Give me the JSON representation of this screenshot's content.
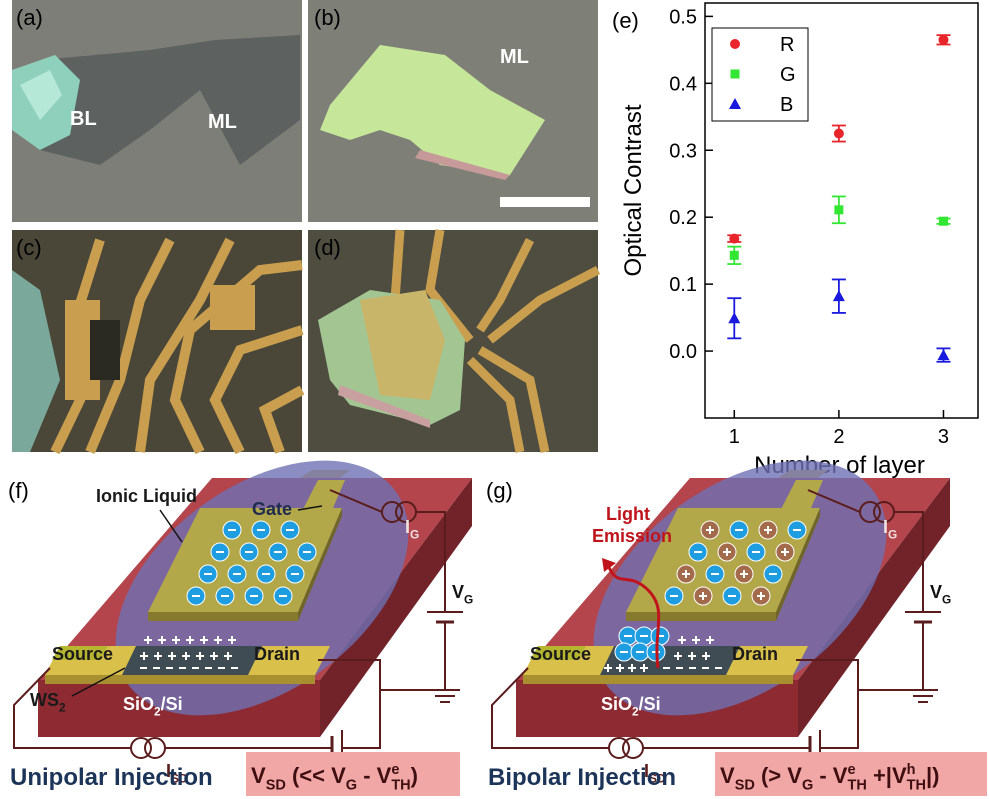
{
  "panels": {
    "a": {
      "label": "(a)",
      "annotations": [
        "BL",
        "ML"
      ]
    },
    "b": {
      "label": "(b)",
      "annotations": [
        "ML"
      ]
    },
    "c": {
      "label": "(c)"
    },
    "d": {
      "label": "(d)"
    },
    "e": {
      "label": "(e)"
    },
    "f": {
      "label": "(f)",
      "ionic_liquid": "Ionic Liquid",
      "gate": "Gate",
      "source": "Source",
      "drain": "Drain",
      "ws2": [
        {
          "t": "WS"
        },
        {
          "t": "2",
          "pos": "sub"
        }
      ],
      "substrate": [
        {
          "t": "SiO"
        },
        {
          "t": "2",
          "pos": "sub"
        },
        {
          "t": "/Si"
        }
      ],
      "ig": [
        {
          "t": "I"
        },
        {
          "t": "G",
          "pos": "sub"
        }
      ],
      "vg": [
        {
          "t": "V"
        },
        {
          "t": "G",
          "pos": "sub"
        }
      ],
      "isd": [
        {
          "t": "I"
        },
        {
          "t": "SD",
          "pos": "sub"
        }
      ],
      "caption": "Unipolar Injection",
      "condition": [
        {
          "t": "V"
        },
        {
          "t": "SD",
          "pos": "sub"
        },
        {
          "t": " (<< V"
        },
        {
          "t": "G",
          "pos": "sub"
        },
        {
          "t": " - V"
        },
        {
          "t": "e",
          "pos": "sup"
        },
        {
          "t": "TH",
          "pos": "sub"
        },
        {
          "t": ")"
        }
      ]
    },
    "g": {
      "label": "(g)",
      "light_emission": [
        "Light",
        "Emission"
      ],
      "source": "Source",
      "drain": "Drain",
      "substrate": [
        {
          "t": "SiO"
        },
        {
          "t": "2",
          "pos": "sub"
        },
        {
          "t": "/Si"
        }
      ],
      "ig": [
        {
          "t": "I"
        },
        {
          "t": "G",
          "pos": "sub"
        }
      ],
      "vg": [
        {
          "t": "V"
        },
        {
          "t": "G",
          "pos": "sub"
        }
      ],
      "isd": [
        {
          "t": "I"
        },
        {
          "t": "SD",
          "pos": "sub"
        }
      ],
      "caption": "Bipolar Injection",
      "condition": [
        {
          "t": "V"
        },
        {
          "t": "SD",
          "pos": "sub"
        },
        {
          "t": " (> V"
        },
        {
          "t": "G",
          "pos": "sub"
        },
        {
          "t": " - V"
        },
        {
          "t": "e",
          "pos": "sup"
        },
        {
          "t": "TH",
          "pos": "sub"
        },
        {
          "t": " +|V"
        },
        {
          "t": "h",
          "pos": "sup"
        },
        {
          "t": "TH",
          "pos": "sub"
        },
        {
          "t": "|)"
        }
      ]
    }
  },
  "chart_data": {
    "type": "scatter",
    "xlabel": "Number of layer",
    "ylabel": "Optical Contrast",
    "x": [
      1,
      2,
      3
    ],
    "series": [
      {
        "name": "R",
        "color": "#e8252a",
        "marker": "circle",
        "values": [
          0.168,
          0.325,
          0.465
        ],
        "errors": [
          0.005,
          0.012,
          0.007
        ]
      },
      {
        "name": "G",
        "color": "#33e633",
        "marker": "square",
        "values": [
          0.143,
          0.211,
          0.194
        ],
        "errors": [
          0.013,
          0.02,
          0.004
        ]
      },
      {
        "name": "B",
        "color": "#1a1adf",
        "marker": "triangle",
        "values": [
          0.049,
          0.082,
          -0.006
        ],
        "errors": [
          0.03,
          0.025,
          0.01
        ]
      }
    ],
    "xlim": [
      0.72,
      3.33
    ],
    "ylim": [
      -0.1,
      0.52
    ],
    "xticks": [
      1,
      2,
      3
    ],
    "yticks": [
      {
        "value": 0,
        "label": "0.0"
      },
      0.1,
      0.2,
      0.3,
      0.4,
      0.5
    ],
    "legend": "upper left"
  }
}
